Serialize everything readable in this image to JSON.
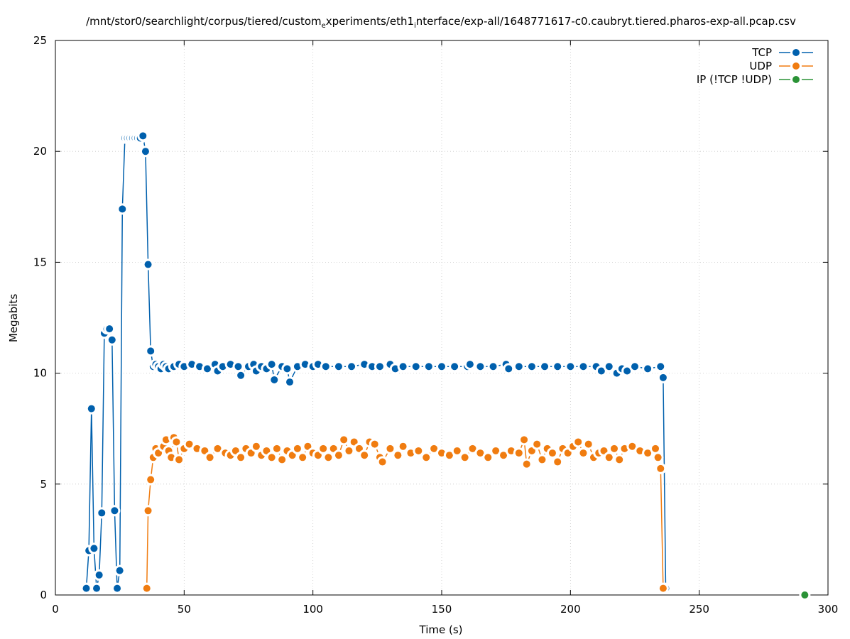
{
  "chart_data": {
    "type": "line",
    "title": {
      "parts": [
        {
          "text": "/mnt/stor0/searchlight/corpus/tiered/custom",
          "sub": false
        },
        {
          "text": "e",
          "sub": true
        },
        {
          "text": "xperiments/eth1",
          "sub": false
        },
        {
          "text": "i",
          "sub": true
        },
        {
          "text": "nterface/exp-all/1648771617-c0.caubryt.tiered.pharos-exp-all.pcap.csv",
          "sub": false
        }
      ]
    },
    "xlabel": "Time (s)",
    "ylabel": "Megabits",
    "xlim": [
      0,
      300
    ],
    "ylim": [
      0,
      25
    ],
    "xticks": [
      0,
      50,
      100,
      150,
      200,
      250,
      300
    ],
    "yticks": [
      0,
      5,
      10,
      15,
      20,
      25
    ],
    "grid": true,
    "legend_position": "top-right",
    "series": [
      {
        "name": "TCP",
        "color": "#0060ad",
        "x": [
          12,
          13,
          14,
          15,
          16,
          17,
          18,
          19,
          20,
          21,
          22,
          23,
          24,
          25,
          26,
          27,
          28,
          29,
          30,
          31,
          32,
          33,
          34,
          35,
          36,
          37,
          38,
          39,
          40,
          41,
          42,
          43,
          44,
          46,
          48,
          50,
          53,
          56,
          59,
          62,
          63,
          65,
          68,
          71,
          72,
          75,
          77,
          78,
          80,
          82,
          84,
          85,
          88,
          90,
          91,
          94,
          97,
          100,
          102,
          105,
          110,
          115,
          120,
          123,
          126,
          130,
          132,
          135,
          140,
          145,
          150,
          155,
          160,
          161,
          165,
          170,
          175,
          176,
          180,
          185,
          190,
          195,
          200,
          205,
          210,
          212,
          215,
          218,
          220,
          222,
          225,
          230,
          235,
          236,
          237
        ],
        "y": [
          0.3,
          2.0,
          8.4,
          2.1,
          0.3,
          0.9,
          3.7,
          11.8,
          12.0,
          12.0,
          11.5,
          3.8,
          0.3,
          1.1,
          17.4,
          20.6,
          20.6,
          20.6,
          20.6,
          20.6,
          20.6,
          20.6,
          20.7,
          20.0,
          14.9,
          11.0,
          10.3,
          10.4,
          10.3,
          10.2,
          10.4,
          10.3,
          10.2,
          10.3,
          10.4,
          10.3,
          10.4,
          10.3,
          10.2,
          10.4,
          10.1,
          10.3,
          10.4,
          10.3,
          9.9,
          10.3,
          10.4,
          10.1,
          10.3,
          10.2,
          10.4,
          9.7,
          10.3,
          10.2,
          9.6,
          10.3,
          10.4,
          10.3,
          10.4,
          10.3,
          10.3,
          10.3,
          10.4,
          10.3,
          10.3,
          10.4,
          10.2,
          10.3,
          10.3,
          10.3,
          10.3,
          10.3,
          10.3,
          10.4,
          10.3,
          10.3,
          10.4,
          10.2,
          10.3,
          10.3,
          10.3,
          10.3,
          10.3,
          10.3,
          10.3,
          10.1,
          10.3,
          10.0,
          10.2,
          10.1,
          10.3,
          10.2,
          10.3,
          9.8,
          0.3
        ]
      },
      {
        "name": "UDP",
        "color": "#f07c10",
        "x": [
          35.5,
          36,
          37,
          38,
          39,
          40,
          42,
          43,
          44,
          45,
          46,
          47,
          48,
          50,
          52,
          55,
          58,
          60,
          63,
          66,
          68,
          70,
          72,
          74,
          76,
          78,
          80,
          82,
          84,
          86,
          88,
          90,
          92,
          94,
          96,
          98,
          100,
          102,
          104,
          106,
          108,
          110,
          112,
          114,
          116,
          118,
          120,
          122,
          124,
          126,
          127,
          130,
          133,
          135,
          138,
          141,
          144,
          147,
          150,
          153,
          156,
          159,
          162,
          165,
          168,
          171,
          174,
          177,
          180,
          182,
          183,
          185,
          187,
          189,
          191,
          193,
          195,
          197,
          199,
          201,
          203,
          205,
          207,
          209,
          211,
          213,
          215,
          217,
          219,
          221,
          224,
          227,
          230,
          233,
          234,
          235,
          236
        ],
        "y": [
          0.3,
          3.8,
          5.2,
          6.2,
          6.6,
          6.4,
          6.7,
          7.0,
          6.5,
          6.2,
          7.1,
          6.9,
          6.1,
          6.6,
          6.8,
          6.6,
          6.5,
          6.2,
          6.6,
          6.4,
          6.3,
          6.5,
          6.2,
          6.6,
          6.4,
          6.7,
          6.3,
          6.5,
          6.2,
          6.6,
          6.1,
          6.5,
          6.3,
          6.6,
          6.2,
          6.7,
          6.4,
          6.3,
          6.6,
          6.2,
          6.6,
          6.3,
          7.0,
          6.5,
          6.9,
          6.6,
          6.3,
          6.9,
          6.8,
          6.2,
          6.0,
          6.6,
          6.3,
          6.7,
          6.4,
          6.5,
          6.2,
          6.6,
          6.4,
          6.3,
          6.5,
          6.2,
          6.6,
          6.4,
          6.2,
          6.5,
          6.3,
          6.5,
          6.4,
          7.0,
          5.9,
          6.5,
          6.8,
          6.1,
          6.6,
          6.4,
          6.0,
          6.6,
          6.4,
          6.7,
          6.9,
          6.4,
          6.8,
          6.2,
          6.4,
          6.5,
          6.2,
          6.6,
          6.1,
          6.6,
          6.7,
          6.5,
          6.4,
          6.6,
          6.2,
          5.7,
          0.3
        ]
      },
      {
        "name": "IP (!TCP  !UDP)",
        "color": "#2a9236",
        "x": [
          291
        ],
        "y": [
          0.0
        ]
      }
    ]
  }
}
